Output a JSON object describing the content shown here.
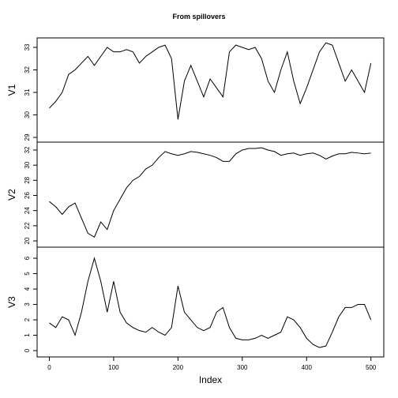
{
  "chart_data": [
    {
      "type": "line",
      "title": "From spillovers",
      "ylabel": "V1",
      "color": "#000000",
      "x": [
        0,
        10,
        20,
        30,
        40,
        50,
        60,
        70,
        80,
        90,
        100,
        110,
        120,
        130,
        140,
        150,
        160,
        170,
        180,
        190,
        200,
        210,
        220,
        230,
        240,
        250,
        260,
        270,
        280,
        290,
        300,
        310,
        320,
        330,
        340,
        350,
        360,
        370,
        380,
        390,
        400,
        410,
        420,
        430,
        440,
        450,
        460,
        470,
        480,
        490,
        500
      ],
      "values": [
        30.3,
        30.6,
        31.0,
        31.8,
        32.0,
        32.3,
        32.6,
        32.2,
        32.6,
        33.0,
        32.8,
        32.8,
        32.9,
        32.8,
        32.3,
        32.6,
        32.8,
        33.0,
        33.1,
        32.5,
        29.8,
        31.5,
        32.2,
        31.5,
        30.8,
        31.6,
        31.2,
        30.8,
        32.8,
        33.1,
        33.0,
        32.9,
        33.0,
        32.5,
        31.5,
        31.0,
        32.0,
        32.8,
        31.5,
        30.5,
        31.2,
        32.0,
        32.8,
        33.2,
        33.1,
        32.3,
        31.5,
        32.0,
        31.5,
        31.0,
        32.3
      ],
      "xlim": [
        -19,
        520
      ],
      "ylim": [
        28.79,
        33.42
      ],
      "yticks": [
        29,
        30,
        31,
        32,
        33
      ]
    },
    {
      "type": "line",
      "ylabel": "V2",
      "color": "#000000",
      "x": [
        0,
        10,
        20,
        30,
        40,
        50,
        60,
        70,
        80,
        90,
        100,
        110,
        120,
        130,
        140,
        150,
        160,
        170,
        180,
        190,
        200,
        210,
        220,
        230,
        240,
        250,
        260,
        270,
        280,
        290,
        300,
        310,
        320,
        330,
        340,
        350,
        360,
        370,
        380,
        390,
        400,
        410,
        420,
        430,
        440,
        450,
        460,
        470,
        480,
        490,
        500
      ],
      "values": [
        25.2,
        24.5,
        23.5,
        24.5,
        25.0,
        23.0,
        21.0,
        20.5,
        22.5,
        21.5,
        24.0,
        25.5,
        27.0,
        28.0,
        28.5,
        29.5,
        30.0,
        31.0,
        31.8,
        31.5,
        31.3,
        31.5,
        31.8,
        31.7,
        31.5,
        31.3,
        31.0,
        30.5,
        30.5,
        31.5,
        32.0,
        32.2,
        32.2,
        32.3,
        32.0,
        31.8,
        31.3,
        31.5,
        31.6,
        31.3,
        31.5,
        31.6,
        31.3,
        30.8,
        31.2,
        31.5,
        31.5,
        31.7,
        31.6,
        31.5,
        31.6
      ],
      "xlim": [
        -19,
        520
      ],
      "ylim": [
        19.17,
        33.04
      ],
      "yticks": [
        20,
        22,
        24,
        26,
        28,
        30,
        32
      ]
    },
    {
      "type": "line",
      "ylabel": "V3",
      "xlabel": "Index",
      "color": "#000000",
      "x": [
        0,
        10,
        20,
        30,
        40,
        50,
        60,
        70,
        80,
        90,
        100,
        110,
        120,
        130,
        140,
        150,
        160,
        170,
        180,
        190,
        200,
        210,
        220,
        230,
        240,
        250,
        260,
        270,
        280,
        290,
        300,
        310,
        320,
        330,
        340,
        350,
        360,
        370,
        380,
        390,
        400,
        410,
        420,
        430,
        440,
        450,
        460,
        470,
        480,
        490,
        500
      ],
      "values": [
        1.8,
        1.5,
        2.2,
        2.0,
        1.0,
        2.5,
        4.5,
        6.0,
        4.5,
        2.5,
        4.5,
        2.5,
        1.8,
        1.5,
        1.3,
        1.2,
        1.5,
        1.2,
        1.0,
        1.5,
        4.2,
        2.5,
        2.0,
        1.5,
        1.3,
        1.5,
        2.5,
        2.8,
        1.5,
        0.8,
        0.7,
        0.7,
        0.8,
        1.0,
        0.8,
        1.0,
        1.2,
        2.2,
        2.0,
        1.5,
        0.8,
        0.4,
        0.2,
        0.3,
        1.2,
        2.2,
        2.8,
        2.8,
        3.0,
        3.0,
        2.0
      ],
      "xlim": [
        -19,
        520
      ],
      "ylim": [
        -0.41,
        6.72
      ],
      "yticks": [
        0,
        1,
        2,
        3,
        4,
        5,
        6
      ],
      "xticks": [
        0,
        100,
        200,
        300,
        400,
        500
      ]
    }
  ]
}
